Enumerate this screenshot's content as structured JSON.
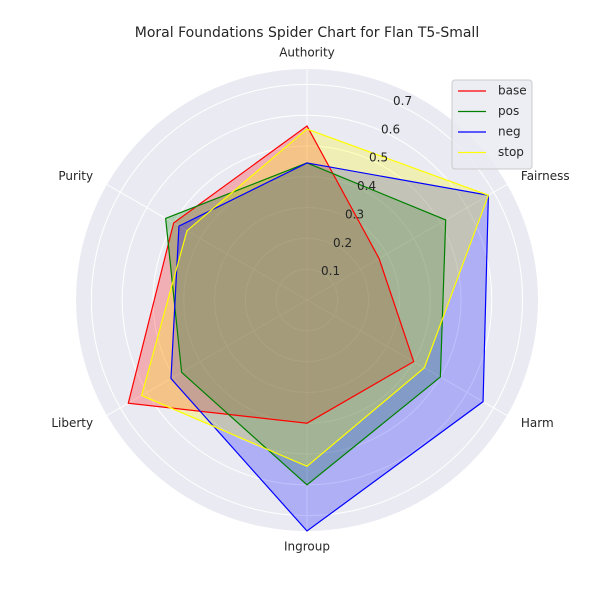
{
  "chart_data": {
    "type": "radar",
    "title": "Moral Foundations Spider Chart for Flan T5-Small",
    "categories": [
      "Authority",
      "Fairness",
      "Harm",
      "Ingroup",
      "Liberty",
      "Purity"
    ],
    "rlim": [
      0,
      0.75
    ],
    "rticks": [
      0.1,
      0.2,
      0.3,
      0.4,
      0.5,
      0.6,
      0.7
    ],
    "rtick_labels": [
      "0.1",
      "0.2",
      "0.3",
      "0.4",
      "0.5",
      "0.6",
      "0.7"
    ],
    "grid": true,
    "legend_position": "top-right",
    "series": [
      {
        "name": "base",
        "color": "#ff0000",
        "values": [
          0.565,
          0.27,
          0.4,
          0.4,
          0.67,
          0.5
        ]
      },
      {
        "name": "pos",
        "color": "#008000",
        "values": [
          0.445,
          0.52,
          0.5,
          0.6,
          0.47,
          0.53
        ]
      },
      {
        "name": "neg",
        "color": "#0000ff",
        "values": [
          0.445,
          0.68,
          0.66,
          0.75,
          0.51,
          0.48
        ]
      },
      {
        "name": "stop",
        "color": "#ffff00",
        "values": [
          0.555,
          0.68,
          0.44,
          0.54,
          0.62,
          0.45
        ]
      }
    ]
  }
}
